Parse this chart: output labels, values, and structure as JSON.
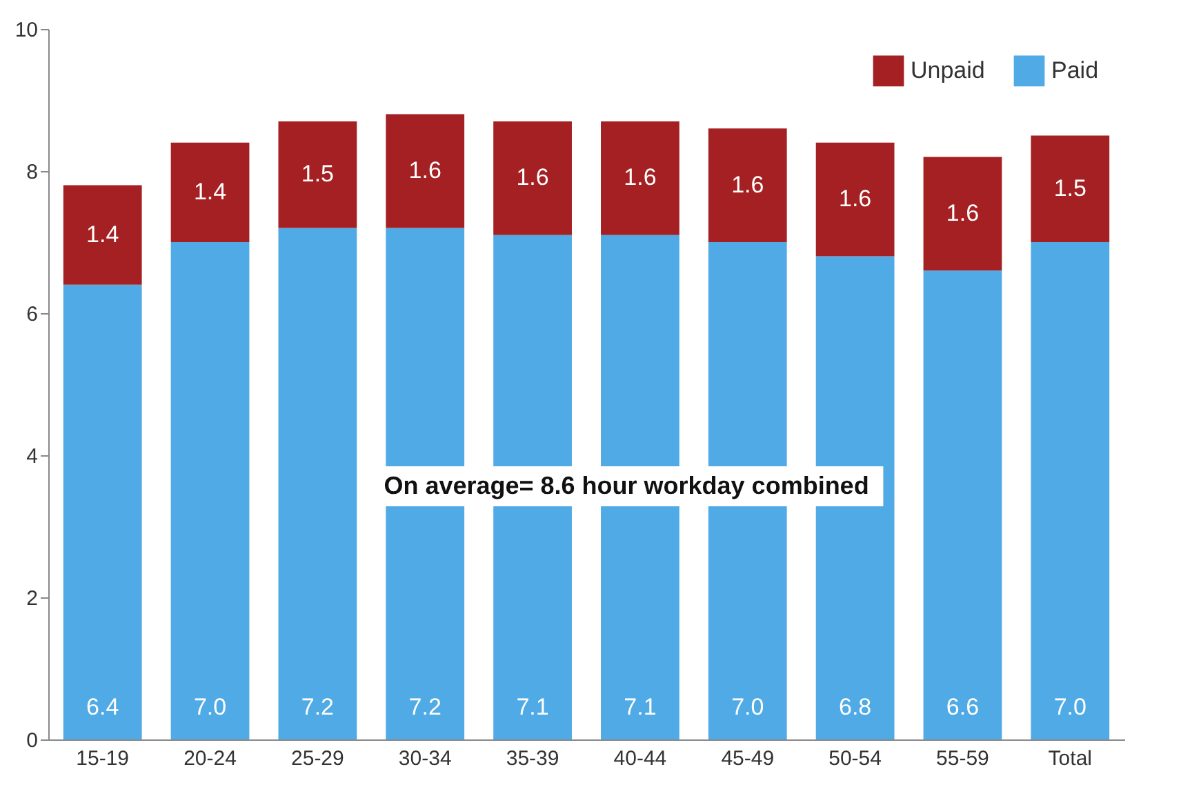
{
  "chart_data": {
    "type": "bar",
    "stacked": true,
    "categories": [
      "15-19",
      "20-24",
      "25-29",
      "30-34",
      "35-39",
      "40-44",
      "45-49",
      "50-54",
      "55-59",
      "Total"
    ],
    "series": [
      {
        "name": "Paid",
        "color": "#4faae5",
        "values": [
          6.4,
          7.0,
          7.2,
          7.2,
          7.1,
          7.1,
          7.0,
          6.8,
          6.6,
          7.0
        ],
        "value_labels": [
          "6.4",
          "7.0",
          "7.2",
          "7.2",
          "7.1",
          "7.1",
          "7.0",
          "6.8",
          "6.6",
          "7.0"
        ]
      },
      {
        "name": "Unpaid",
        "color": "#a52022",
        "values": [
          1.4,
          1.4,
          1.5,
          1.6,
          1.6,
          1.6,
          1.6,
          1.6,
          1.6,
          1.5
        ],
        "value_labels": [
          "1.4",
          "1.4",
          "1.5",
          "1.6",
          "1.6",
          "1.6",
          "1.6",
          "1.6",
          "1.6",
          "1.5"
        ]
      }
    ],
    "ylim": [
      0,
      10
    ],
    "yticks": [
      0,
      2,
      4,
      6,
      8,
      10
    ],
    "grid": false,
    "legend": "top right",
    "annotations": [
      "On average= 8.6 hour workday combined"
    ]
  }
}
